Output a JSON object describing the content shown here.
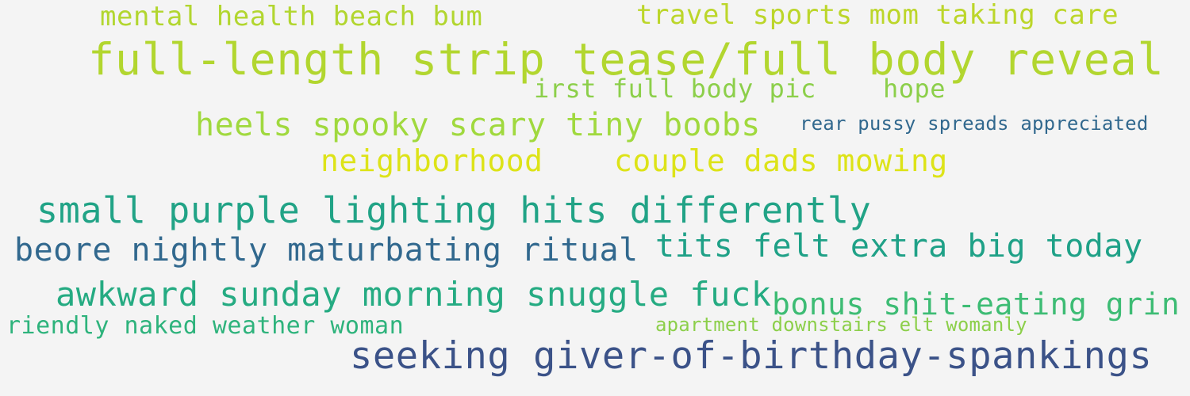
{
  "colors": {
    "background": "#f4f4f4",
    "lime": "#b2d62f",
    "yellow": "#dde318",
    "green_light": "#8ccf4a",
    "teal": "#21a386",
    "green_teal": "#2eb37c",
    "steel_blue": "#31688e",
    "navy_blue": "#3b5288"
  },
  "phrases": [
    {
      "text": "mental health beach bum",
      "color": "#b2d62f"
    },
    {
      "text": "travel sports mom taking care",
      "color": "#bcd62a"
    },
    {
      "text": "full-length strip tease/full body reveal",
      "color": "#b2d62f"
    },
    {
      "text": "irst full body pic",
      "color": "#8ccf4a"
    },
    {
      "text": "hope",
      "color": "#8ccf4a"
    },
    {
      "text": "heels spooky scary tiny boobs",
      "color": "#a0d93e"
    },
    {
      "text": "rear pussy spreads appreciated",
      "color": "#31688e"
    },
    {
      "text": "neighborhood",
      "color": "#dde318"
    },
    {
      "text": "couple dads mowing",
      "color": "#dde318"
    },
    {
      "text": "small purple lighting hits differently",
      "color": "#21a386"
    },
    {
      "text": "beore nightly maturbating ritual",
      "color": "#31688e"
    },
    {
      "text": "tits felt extra big today",
      "color": "#1fa187"
    },
    {
      "text": "awkward sunday morning snuggle fuck",
      "color": "#25ab82"
    },
    {
      "text": "bonus shit-eating grin",
      "color": "#3dbc74"
    },
    {
      "text": "riendly naked weather woman",
      "color": "#2eb37c"
    },
    {
      "text": "apartment downstairs elt womanly",
      "color": "#8ccf4a"
    },
    {
      "text": "seeking giver-of-birthday-spankings",
      "color": "#3b5288"
    }
  ]
}
